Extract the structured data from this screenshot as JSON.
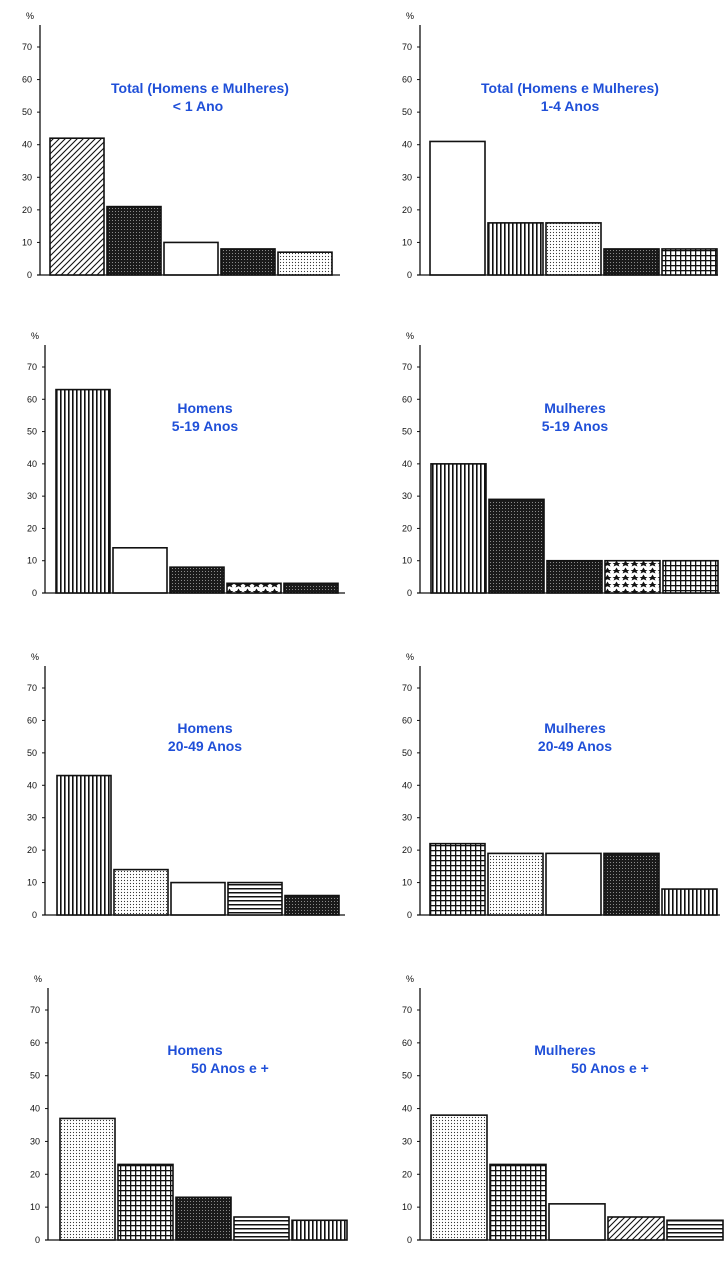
{
  "colors": {
    "title": "#1f4fd8",
    "ink": "#111111",
    "background": "#ffffff"
  },
  "y_unit": "%",
  "y_ticks": [
    "0",
    "10",
    "20",
    "30",
    "40",
    "50",
    "60",
    "70"
  ],
  "chart_data": [
    {
      "type": "bar",
      "title_lines": [
        "Total (Homens e Mulheres)",
        "< 1 Ano"
      ],
      "categories": [
        "",
        "",
        "",
        "",
        ""
      ],
      "values": [
        42,
        21,
        10,
        8,
        7
      ],
      "patterns": [
        "diag",
        "dense",
        "solid",
        "dense",
        "dots"
      ],
      "ylim": [
        0,
        70
      ]
    },
    {
      "type": "bar",
      "title_lines": [
        "Total (Homens e Mulheres)",
        "1-4 Anos"
      ],
      "categories": [
        "",
        "",
        "",
        "",
        ""
      ],
      "values": [
        41,
        16,
        16,
        8,
        8
      ],
      "patterns": [
        "solid",
        "vert",
        "dots",
        "dense",
        "grid"
      ],
      "ylim": [
        0,
        70
      ]
    },
    {
      "type": "bar",
      "title_lines": [
        "Homens",
        "5-19 Anos"
      ],
      "categories": [
        "",
        "",
        "",
        "",
        ""
      ],
      "values": [
        63,
        14,
        8,
        3,
        3
      ],
      "patterns": [
        "vert",
        "solid",
        "dense",
        "stars",
        "dense"
      ],
      "ylim": [
        0,
        70
      ]
    },
    {
      "type": "bar",
      "title_lines": [
        "Mulheres",
        "5-19 Anos"
      ],
      "categories": [
        "",
        "",
        "",
        "",
        ""
      ],
      "values": [
        40,
        29,
        10,
        10,
        10
      ],
      "patterns": [
        "vert",
        "dense",
        "dense",
        "stars",
        "grid"
      ],
      "ylim": [
        0,
        70
      ]
    },
    {
      "type": "bar",
      "title_lines": [
        "Homens",
        "20-49 Anos"
      ],
      "categories": [
        "",
        "",
        "",
        "",
        ""
      ],
      "values": [
        43,
        14,
        10,
        10,
        6
      ],
      "patterns": [
        "vert",
        "dots",
        "solid",
        "horiz",
        "dense"
      ],
      "ylim": [
        0,
        70
      ]
    },
    {
      "type": "bar",
      "title_lines": [
        "Mulheres",
        "20-49 Anos"
      ],
      "categories": [
        "",
        "",
        "",
        "",
        ""
      ],
      "values": [
        22,
        19,
        19,
        19,
        8
      ],
      "patterns": [
        "grid",
        "dots",
        "solid",
        "dense",
        "vert"
      ],
      "ylim": [
        0,
        70
      ]
    },
    {
      "type": "bar",
      "title_lines": [
        "Homens",
        "50 Anos  e  +"
      ],
      "categories": [
        "",
        "",
        "",
        "",
        ""
      ],
      "values": [
        37,
        23,
        13,
        7,
        6
      ],
      "patterns": [
        "dots",
        "grid",
        "dense",
        "horiz",
        "vert"
      ],
      "ylim": [
        0,
        70
      ]
    },
    {
      "type": "bar",
      "title_lines": [
        "Mulheres",
        "50 Anos  e  +"
      ],
      "categories": [
        "",
        "",
        "",
        "",
        ""
      ],
      "values": [
        38,
        23,
        11,
        7,
        6
      ],
      "patterns": [
        "dots",
        "grid",
        "solid",
        "diag",
        "horiz"
      ],
      "ylim": [
        0,
        70
      ]
    }
  ]
}
